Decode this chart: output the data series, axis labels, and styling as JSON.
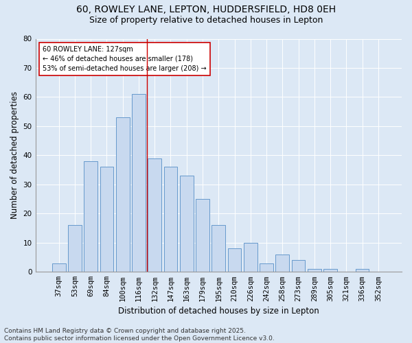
{
  "title1": "60, ROWLEY LANE, LEPTON, HUDDERSFIELD, HD8 0EH",
  "title2": "Size of property relative to detached houses in Lepton",
  "xlabel": "Distribution of detached houses by size in Lepton",
  "ylabel": "Number of detached properties",
  "categories": [
    "37sqm",
    "53sqm",
    "69sqm",
    "84sqm",
    "100sqm",
    "116sqm",
    "132sqm",
    "147sqm",
    "163sqm",
    "179sqm",
    "195sqm",
    "210sqm",
    "226sqm",
    "242sqm",
    "258sqm",
    "273sqm",
    "289sqm",
    "305sqm",
    "321sqm",
    "336sqm",
    "352sqm"
  ],
  "values": [
    3,
    16,
    38,
    36,
    53,
    61,
    39,
    36,
    33,
    25,
    16,
    8,
    10,
    3,
    6,
    4,
    1,
    1,
    0,
    1,
    0
  ],
  "bar_color": "#c8d9ef",
  "bar_edge_color": "#6699cc",
  "ref_line_x": 5.5,
  "ref_line_color": "#cc0000",
  "annotation_text": "60 ROWLEY LANE: 127sqm\n← 46% of detached houses are smaller (178)\n53% of semi-detached houses are larger (208) →",
  "annotation_box_color": "#ffffff",
  "annotation_box_edge": "#cc0000",
  "ylim": [
    0,
    80
  ],
  "yticks": [
    0,
    10,
    20,
    30,
    40,
    50,
    60,
    70,
    80
  ],
  "footnote": "Contains HM Land Registry data © Crown copyright and database right 2025.\nContains public sector information licensed under the Open Government Licence v3.0.",
  "bg_color": "#dce8f5",
  "plot_bg_color": "#dce8f5",
  "title_fontsize": 10,
  "subtitle_fontsize": 9,
  "axis_label_fontsize": 8.5,
  "tick_fontsize": 7.5,
  "footnote_fontsize": 6.5
}
